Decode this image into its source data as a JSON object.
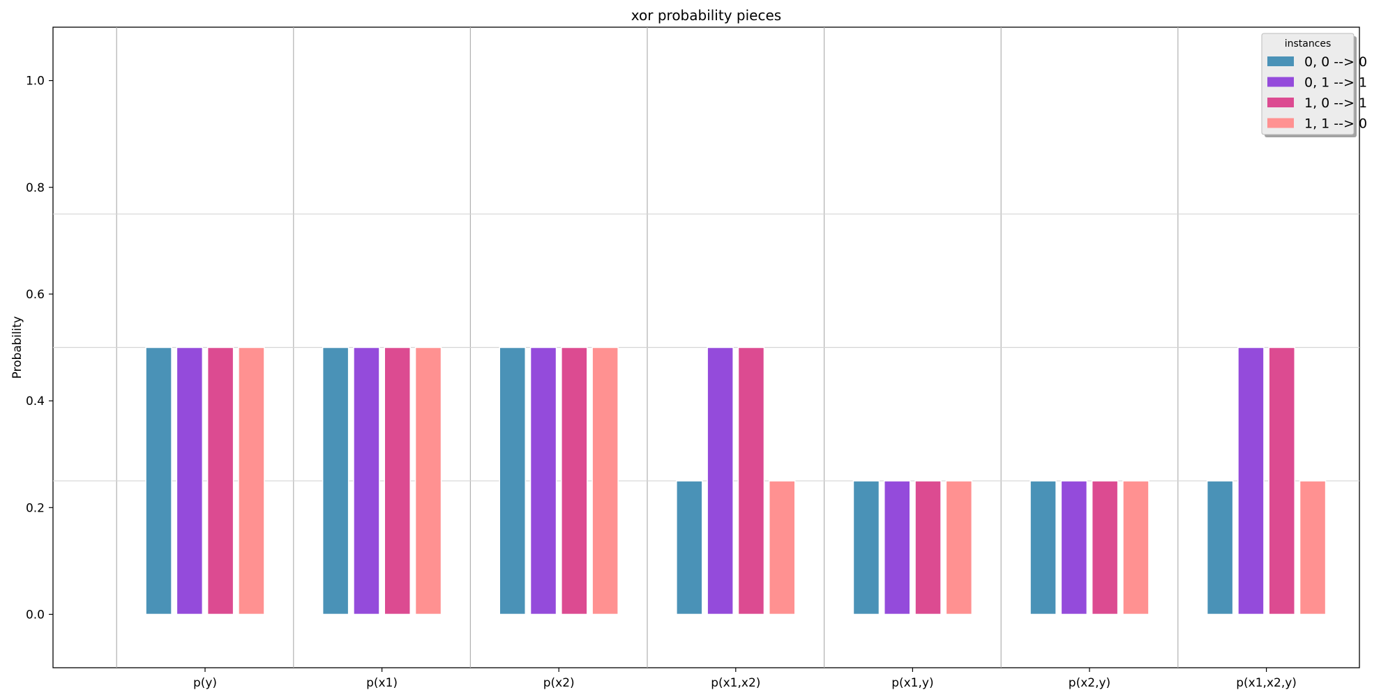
{
  "chart_data": {
    "type": "bar",
    "title": "xor probability pieces",
    "xlabel": "",
    "ylabel": "Probability",
    "ylim": [
      -0.1,
      1.1
    ],
    "yticks": [
      0.0,
      0.2,
      0.4,
      0.6,
      0.8,
      1.0
    ],
    "ytick_labels": [
      "0.0",
      "0.2",
      "0.4",
      "0.6",
      "0.8",
      "1.0"
    ],
    "horizontal_gridlines": [
      0.25,
      0.5,
      0.75
    ],
    "categories": [
      "p(y)",
      "p(x1)",
      "p(x2)",
      "p(x1,x2)",
      "p(x1,y)",
      "p(x2,y)",
      "p(x1,x2,y)"
    ],
    "series": [
      {
        "name": "0, 0 --> 0",
        "color": "#4a92b7",
        "values": [
          0.5,
          0.5,
          0.5,
          0.25,
          0.25,
          0.25,
          0.25
        ]
      },
      {
        "name": "0, 1 --> 1",
        "color": "#944bdb",
        "values": [
          0.5,
          0.5,
          0.5,
          0.5,
          0.25,
          0.25,
          0.5
        ]
      },
      {
        "name": "1, 0 --> 1",
        "color": "#dc4b91",
        "values": [
          0.5,
          0.5,
          0.5,
          0.5,
          0.25,
          0.25,
          0.5
        ]
      },
      {
        "name": "1, 1 --> 0",
        "color": "#ff9191",
        "values": [
          0.5,
          0.5,
          0.5,
          0.25,
          0.25,
          0.25,
          0.25
        ]
      }
    ],
    "legend": {
      "title": "instances",
      "position": "top-right"
    }
  }
}
